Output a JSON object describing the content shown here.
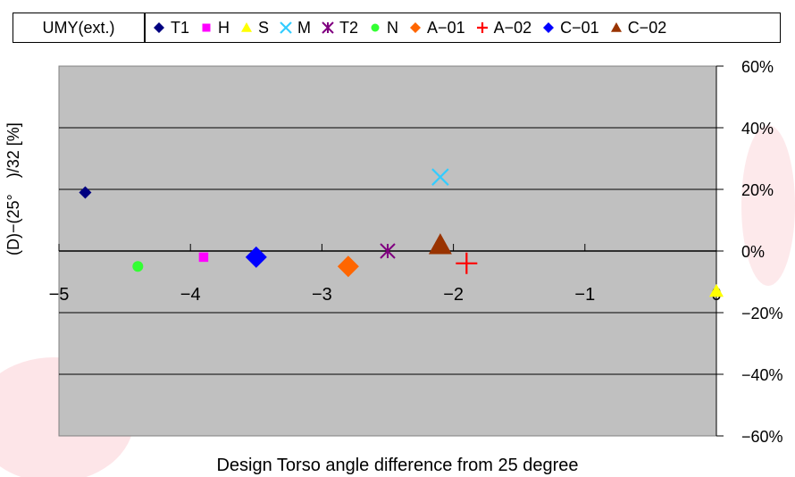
{
  "label_box": "UMY(ext.)",
  "chart_data": {
    "type": "scatter",
    "xlabel": "Design Torso angle difference from 25 degree",
    "ylabel": "(D)−(25°　)/32 [%]",
    "xlim": [
      -5,
      0
    ],
    "ylim": [
      -60,
      60
    ],
    "x_ticks": [
      "−5",
      "−4",
      "−3",
      "−2",
      "−1",
      "0"
    ],
    "y_ticks": [
      "60%",
      "40%",
      "20%",
      "0%",
      "−20%",
      "−40%",
      "−60%"
    ],
    "grid": true,
    "legend_position": "top",
    "series": [
      {
        "name": "T1",
        "marker": "diamond",
        "color": "#000080",
        "x": -4.8,
        "y": 19
      },
      {
        "name": "H",
        "marker": "square",
        "color": "#ff00ff",
        "x": -3.9,
        "y": -2
      },
      {
        "name": "S",
        "marker": "triangle",
        "color": "#ffff00",
        "x": 0.0,
        "y": -13
      },
      {
        "name": "M",
        "marker": "x",
        "color": "#33ccff",
        "x": -2.1,
        "y": 24
      },
      {
        "name": "T2",
        "marker": "star",
        "color": "#800080",
        "x": -2.5,
        "y": 0
      },
      {
        "name": "N",
        "marker": "circle",
        "color": "#33ff33",
        "x": -4.4,
        "y": -5
      },
      {
        "name": "A−01",
        "marker": "diamond",
        "color": "#ff6600",
        "x": -2.8,
        "y": -5
      },
      {
        "name": "A−02",
        "marker": "plus",
        "color": "#ff0000",
        "x": -1.9,
        "y": -4
      },
      {
        "name": "C−01",
        "marker": "diamond",
        "color": "#0000ff",
        "x": -3.5,
        "y": -2
      },
      {
        "name": "C−02",
        "marker": "triangle",
        "color": "#993300",
        "x": -2.1,
        "y": 2
      }
    ]
  }
}
